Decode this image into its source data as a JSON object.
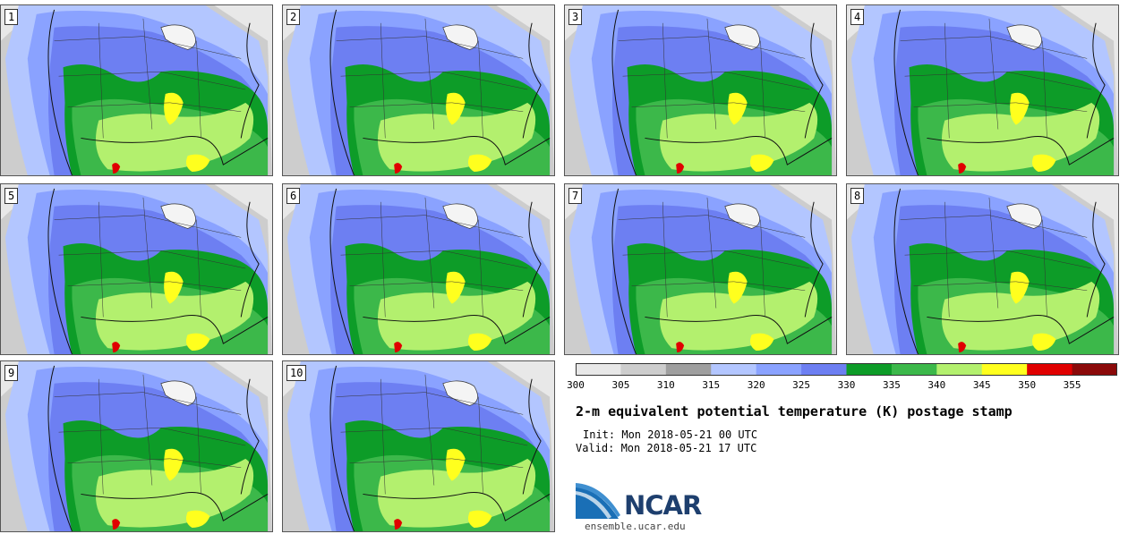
{
  "panels": [
    {
      "label": "1"
    },
    {
      "label": "2"
    },
    {
      "label": "3"
    },
    {
      "label": "4"
    },
    {
      "label": "5"
    },
    {
      "label": "6"
    },
    {
      "label": "7"
    },
    {
      "label": "8"
    },
    {
      "label": "9"
    },
    {
      "label": "10"
    }
  ],
  "colorbar": {
    "colors": [
      "#e8e8e8",
      "#cdcdcd",
      "#9f9f9f",
      "#b3c6ff",
      "#8aa2ff",
      "#6d7ff2",
      "#0d9c28",
      "#3cb84a",
      "#b3f06e",
      "#ffff1e",
      "#e00000",
      "#8b0a0a"
    ],
    "ticks": [
      "300",
      "305",
      "310",
      "315",
      "320",
      "325",
      "330",
      "335",
      "340",
      "345",
      "350",
      "355"
    ]
  },
  "title": "2-m equivalent potential temperature (K) postage stamp",
  "init": "Init: Mon 2018-05-21 00 UTC",
  "valid": "Valid: Mon 2018-05-21 17 UTC",
  "logo": {
    "name": "NCAR",
    "url": "ensemble.ucar.edu"
  }
}
